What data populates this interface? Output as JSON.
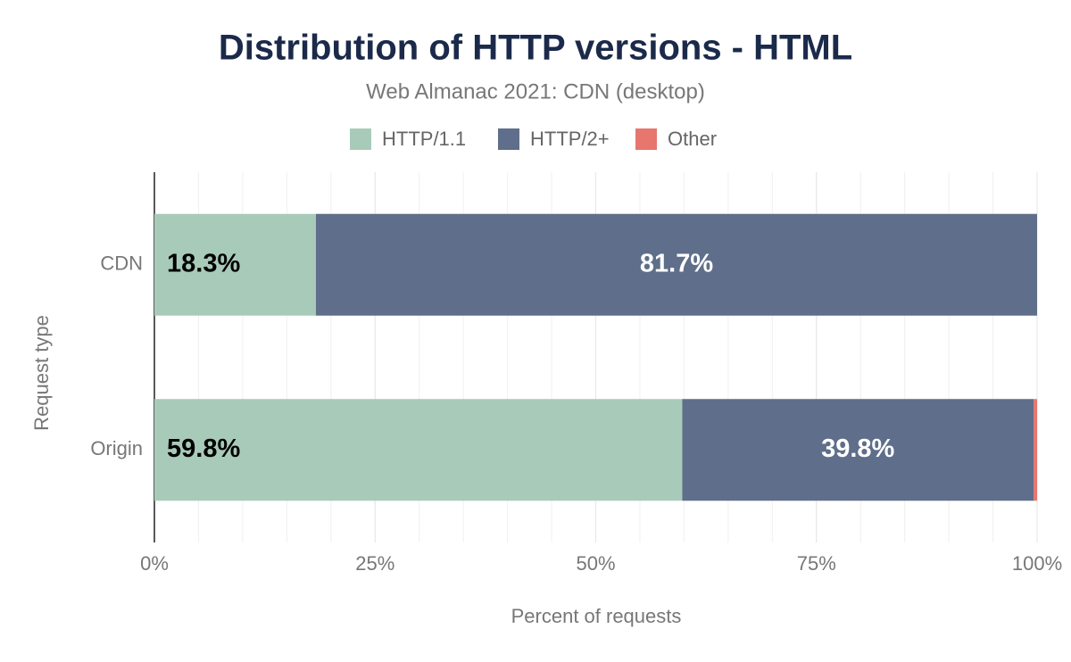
{
  "chart_data": {
    "type": "stacked-bar-horizontal",
    "title": "Distribution of HTTP versions - HTML",
    "subtitle": "Web Almanac 2021: CDN (desktop)",
    "x_label": "Percent of requests",
    "y_label": "Request type",
    "categories": [
      "CDN",
      "Origin"
    ],
    "series": [
      {
        "name": "HTTP/1.1",
        "color": "#a8cbb9",
        "values": [
          18.3,
          59.8
        ],
        "value_labels": [
          "18.3%",
          "59.8%"
        ]
      },
      {
        "name": "HTTP/2+",
        "color": "#5f6e8a",
        "values": [
          81.7,
          39.8
        ],
        "value_labels": [
          "81.7%",
          "39.8%"
        ]
      },
      {
        "name": "Other",
        "color": "#e6766e",
        "values": [
          0,
          0.4
        ]
      }
    ],
    "xlim": [
      0,
      100
    ],
    "xticks": [
      {
        "value": 0,
        "label": "0%"
      },
      {
        "value": 25,
        "label": "25%"
      },
      {
        "value": 50,
        "label": "50%"
      },
      {
        "value": 75,
        "label": "75%"
      },
      {
        "value": 100,
        "label": "100%"
      }
    ],
    "grid": true
  }
}
